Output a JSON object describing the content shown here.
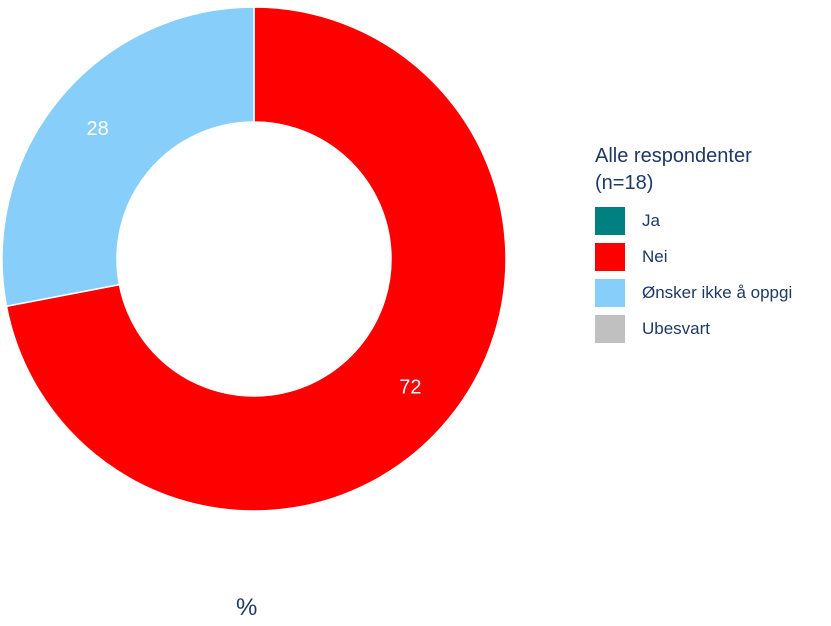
{
  "chart_data": {
    "type": "pie",
    "donut": true,
    "legend_title": "Alle respondenter\n(n=18)",
    "unit_label": "%",
    "legend_position": "right",
    "slices": [
      {
        "name": "Ja",
        "value": 0,
        "color": "#008080"
      },
      {
        "name": "Nei",
        "value": 72,
        "color": "#ff0000"
      },
      {
        "name": "Ønsker ikke å oppgi",
        "value": 28,
        "color": "#87cefa"
      },
      {
        "name": "Ubesvart",
        "value": 0,
        "color": "#c0c0c0"
      }
    ]
  }
}
